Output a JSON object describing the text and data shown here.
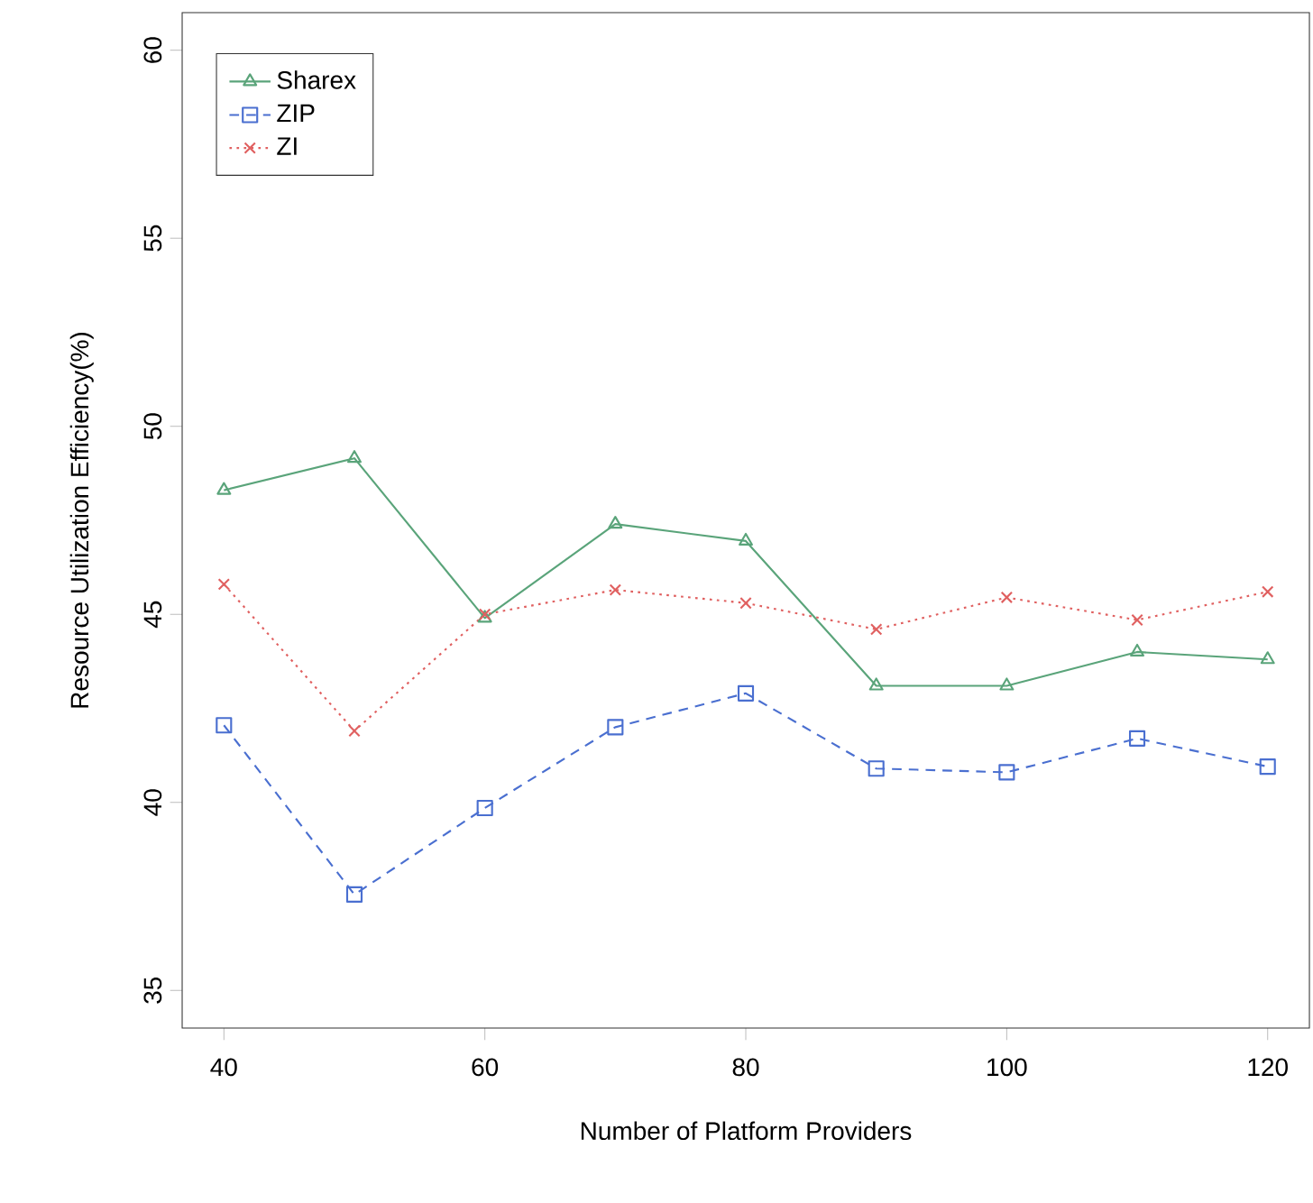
{
  "chart_data": {
    "type": "line",
    "xlabel": "Number of Platform Providers",
    "ylabel": "Resource Utilization Efficiency(%)",
    "x": [
      40,
      50,
      60,
      70,
      80,
      90,
      100,
      110,
      120
    ],
    "xlim": [
      36.8,
      123.2
    ],
    "xticks": [
      40,
      60,
      80,
      100,
      120
    ],
    "ylim": [
      34,
      61
    ],
    "yticks": [
      35,
      40,
      45,
      50,
      55,
      60
    ],
    "grid": false,
    "legend": "top left",
    "series": [
      {
        "name": "Sharex",
        "color": "#5aa47a",
        "marker": "triangle",
        "line_style": "solid",
        "values": [
          48.3,
          49.15,
          44.9,
          47.4,
          46.95,
          43.1,
          43.1,
          44.0,
          43.8
        ]
      },
      {
        "name": "ZIP",
        "color": "#4a6fd0",
        "marker": "square",
        "line_style": "dashed",
        "values": [
          42.05,
          37.55,
          39.85,
          42.0,
          42.9,
          40.9,
          40.8,
          41.7,
          40.95
        ]
      },
      {
        "name": "ZI",
        "color": "#e06060",
        "marker": "cross",
        "line_style": "dotted",
        "values": [
          45.8,
          41.9,
          45.0,
          45.65,
          45.3,
          44.6,
          45.45,
          44.85,
          45.6
        ]
      }
    ]
  }
}
